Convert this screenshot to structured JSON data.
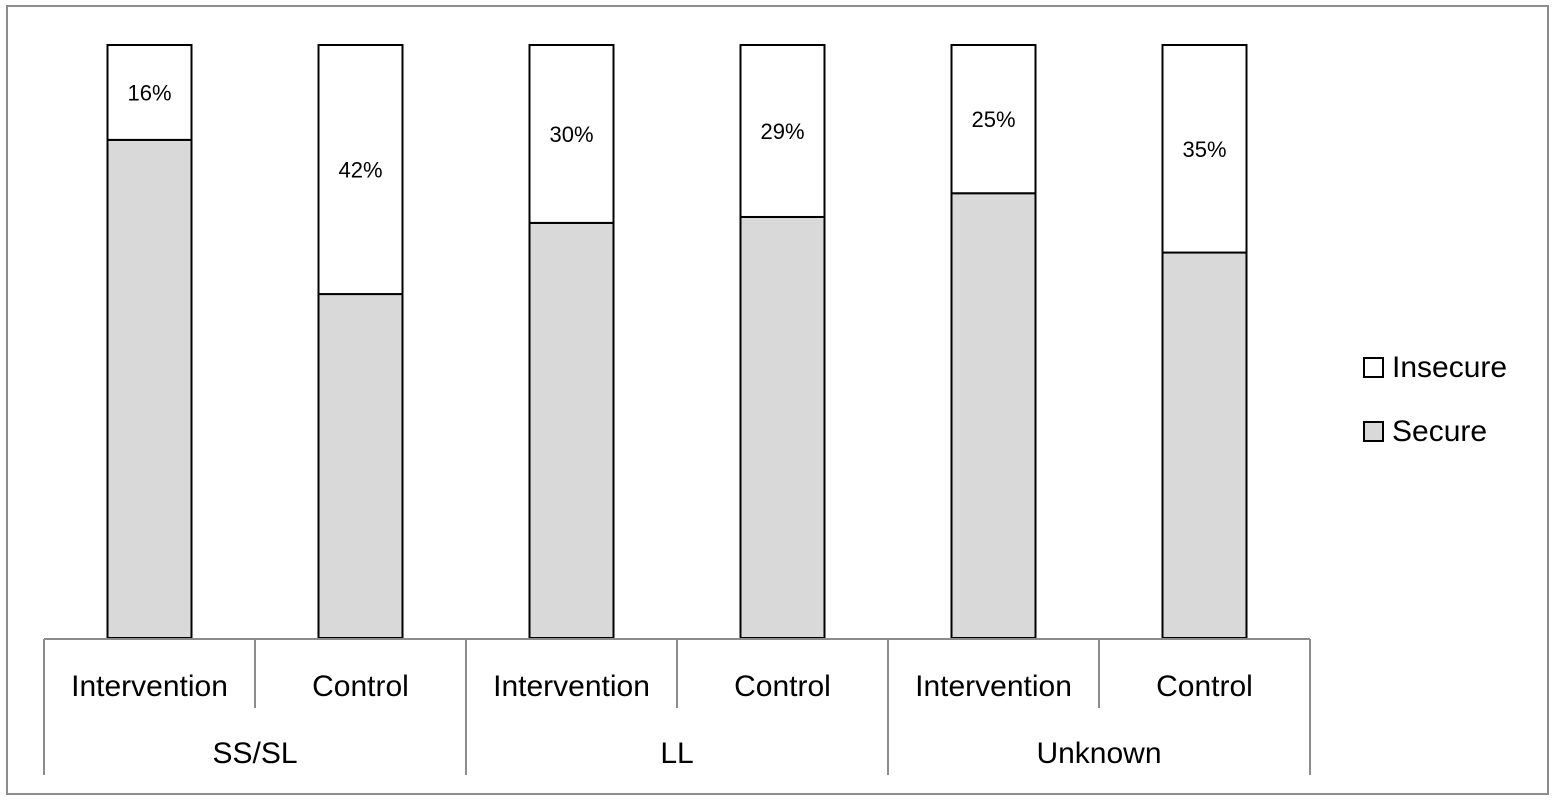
{
  "chart_data": {
    "type": "bar",
    "stacked": true,
    "percent_stacked": true,
    "groups": [
      {
        "label": "SS/SL",
        "categories": [
          "Intervention",
          "Control"
        ]
      },
      {
        "label": "LL",
        "categories": [
          "Intervention",
          "Control"
        ]
      },
      {
        "label": "Unknown",
        "categories": [
          "Intervention",
          "Control"
        ]
      }
    ],
    "categories": [
      "Intervention",
      "Control",
      "Intervention",
      "Control",
      "Intervention",
      "Control"
    ],
    "series": [
      {
        "name": "Secure",
        "values": [
          84,
          58,
          70,
          71,
          75,
          65
        ],
        "color": "#d9d9d9"
      },
      {
        "name": "Insecure",
        "values": [
          16,
          42,
          30,
          29,
          25,
          35
        ],
        "color": "#ffffff"
      }
    ],
    "data_labels": [
      "16%",
      "42%",
      "30%",
      "29%",
      "25%",
      "35%"
    ],
    "ylim": [
      0,
      100
    ],
    "legend": {
      "position": "right",
      "entries": [
        "Insecure",
        "Secure"
      ]
    },
    "grid": false
  }
}
